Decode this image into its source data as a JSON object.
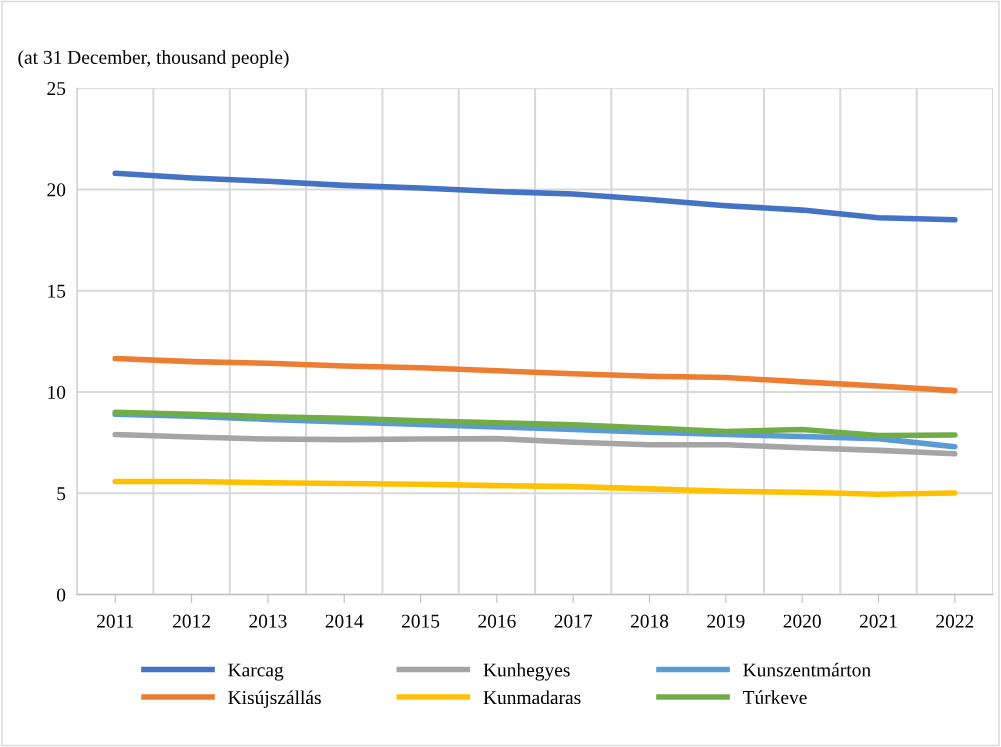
{
  "chart_data": {
    "type": "line",
    "ylabel": "(at 31 December, thousand people)",
    "categories": [
      "2011",
      "2012",
      "2013",
      "2014",
      "2015",
      "2016",
      "2017",
      "2018",
      "2019",
      "2020",
      "2021",
      "2022"
    ],
    "series": [
      {
        "name": "Karcag",
        "color": "#4472c4",
        "values": [
          20.8,
          20.56,
          20.4,
          20.2,
          20.07,
          19.9,
          19.77,
          19.5,
          19.2,
          18.98,
          18.6,
          18.5
        ]
      },
      {
        "name": "Kisújszállás",
        "color": "#ed7d31",
        "values": [
          11.65,
          11.5,
          11.42,
          11.28,
          11.2,
          11.05,
          10.9,
          10.78,
          10.72,
          10.5,
          10.3,
          10.07
        ]
      },
      {
        "name": "Kunhegyes",
        "color": "#a5a5a5",
        "values": [
          7.9,
          7.78,
          7.68,
          7.65,
          7.68,
          7.7,
          7.52,
          7.4,
          7.4,
          7.25,
          7.12,
          6.95
        ]
      },
      {
        "name": "Kunmadaras",
        "color": "#ffc000",
        "values": [
          5.58,
          5.58,
          5.52,
          5.48,
          5.45,
          5.38,
          5.33,
          5.22,
          5.1,
          5.05,
          4.95,
          5.02
        ]
      },
      {
        "name": "Kunszentmárton",
        "color": "#5b9bd5",
        "values": [
          8.9,
          8.8,
          8.65,
          8.52,
          8.4,
          8.28,
          8.15,
          8.02,
          7.9,
          7.8,
          7.7,
          7.3
        ]
      },
      {
        "name": "Túrkeve",
        "color": "#70ad47",
        "values": [
          9.0,
          8.9,
          8.78,
          8.7,
          8.58,
          8.48,
          8.38,
          8.22,
          8.05,
          8.15,
          7.85,
          7.88
        ]
      }
    ],
    "ylim": [
      0,
      25
    ],
    "yticks": [
      0,
      5,
      10,
      15,
      20,
      25
    ],
    "grid": true,
    "legend": "bottom",
    "marker": "none",
    "line_style": "solid"
  }
}
